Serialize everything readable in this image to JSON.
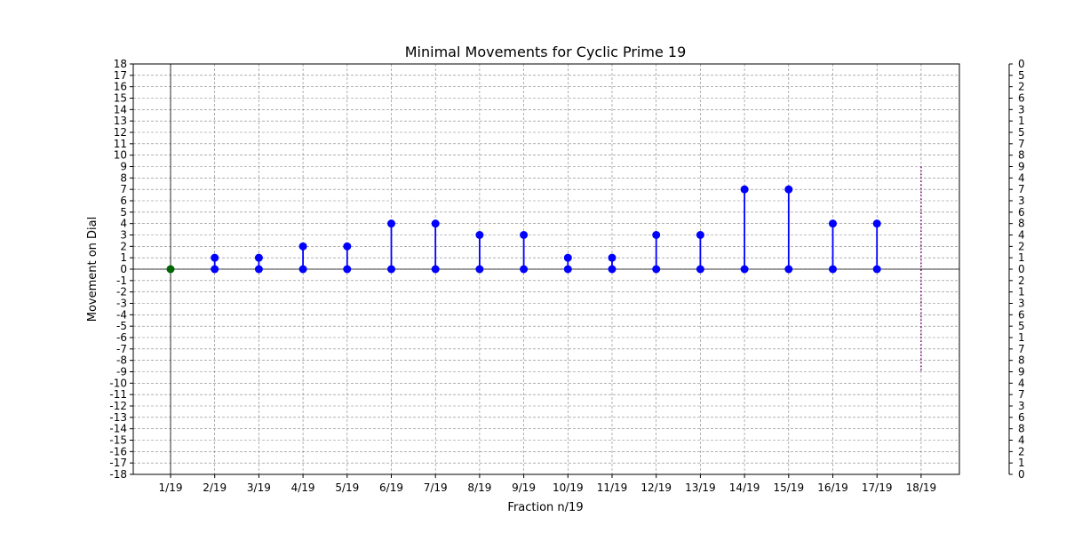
{
  "chart_data": {
    "type": "stem",
    "title": "Minimal Movements for Cyclic Prime 19",
    "xlabel": "Fraction n/19",
    "ylabel": "Movement on Dial",
    "categories": [
      "1/19",
      "2/19",
      "3/19",
      "4/19",
      "5/19",
      "6/19",
      "7/19",
      "8/19",
      "9/19",
      "10/19",
      "11/19",
      "12/19",
      "13/19",
      "14/19",
      "15/19",
      "16/19",
      "17/19",
      "18/19"
    ],
    "values": [
      0,
      1,
      1,
      2,
      2,
      4,
      4,
      3,
      3,
      1,
      1,
      3,
      3,
      7,
      7,
      4,
      4,
      null
    ],
    "start_marker": {
      "category": "1/19",
      "value": 0,
      "color": "#006400"
    },
    "dotted_range": {
      "category": "18/19",
      "from": -9,
      "to": 9,
      "color": "#800080"
    },
    "ylim": [
      -18,
      18
    ],
    "yticks": [
      -18,
      -17,
      -16,
      -15,
      -14,
      -13,
      -12,
      -11,
      -10,
      -9,
      -8,
      -7,
      -6,
      -5,
      -4,
      -3,
      -2,
      -1,
      0,
      1,
      2,
      3,
      4,
      5,
      6,
      7,
      8,
      9,
      10,
      11,
      12,
      13,
      14,
      15,
      16,
      17,
      18
    ],
    "right_axis_labels": [
      "0",
      "5",
      "2",
      "6",
      "3",
      "1",
      "5",
      "7",
      "8",
      "9",
      "4",
      "7",
      "3",
      "6",
      "8",
      "4",
      "2",
      "1",
      "0",
      "2",
      "1",
      "3",
      "6",
      "5",
      "1",
      "7",
      "8",
      "9",
      "4",
      "7",
      "3",
      "6",
      "8",
      "4",
      "2",
      "1",
      "0"
    ],
    "grid": true,
    "series_color": "#0000ff",
    "zero_line_color": "#000000"
  }
}
